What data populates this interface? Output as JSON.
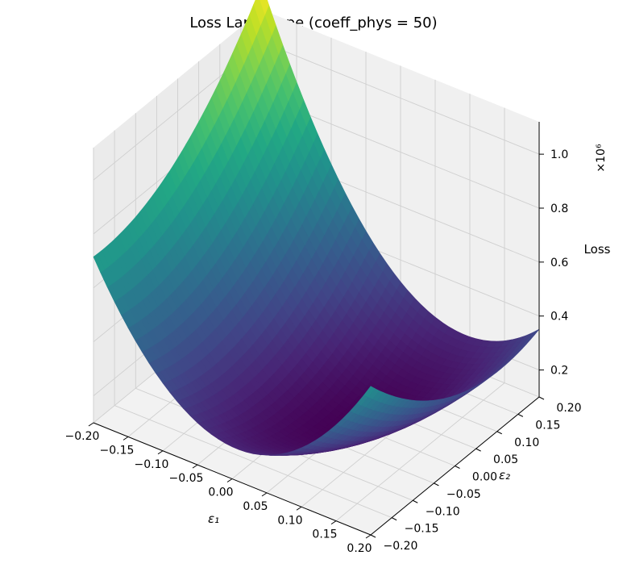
{
  "chart_data": {
    "type": "surface3d",
    "title": "Loss Landscape (coeff_phys = 50)",
    "xlabel": "ε₁",
    "ylabel": "ε₂",
    "zlabel": "Loss",
    "z_multiplier": "×10⁶",
    "x_ticks": [
      "−0.20",
      "−0.15",
      "−0.10",
      "−0.05",
      "0.00",
      "0.05",
      "0.10",
      "0.15",
      "0.20"
    ],
    "y_ticks": [
      "−0.20",
      "−0.15",
      "−0.10",
      "−0.05",
      "0.00",
      "0.05",
      "0.10",
      "0.15",
      "0.20"
    ],
    "z_ticks": [
      "0.2",
      "0.4",
      "0.6",
      "0.8",
      "1.0"
    ],
    "xlim": [
      -0.2,
      0.2
    ],
    "ylim": [
      -0.2,
      0.2
    ],
    "zlim": [
      0.1,
      1.12
    ],
    "z_units_scale": 1000000,
    "colormap": "viridis",
    "grid": true,
    "surface": {
      "x_range": [
        -0.2,
        0.2
      ],
      "y_range": [
        -0.2,
        0.2
      ],
      "corner_values": {
        "x_min_y_min": 1.1,
        "x_min_y_max": 0.85,
        "x_max_y_min": 0.3,
        "x_max_y_max": 0.6
      },
      "minimum": {
        "x": 0.05,
        "y": 0.0,
        "z": 0.1
      }
    }
  }
}
